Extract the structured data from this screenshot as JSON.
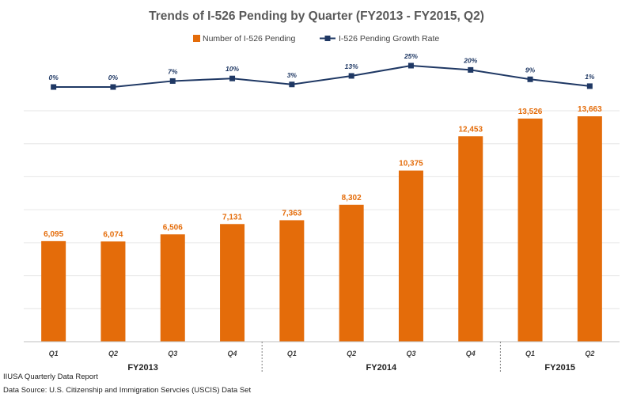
{
  "chart_data": {
    "type": "bar",
    "title": "Trends of I-526 Pending by Quarter (FY2013 - FY2015, Q2)",
    "categories": [
      "Q1",
      "Q2",
      "Q3",
      "Q4",
      "Q1",
      "Q2",
      "Q3",
      "Q4",
      "Q1",
      "Q2"
    ],
    "groups": [
      {
        "label": "FY2013",
        "count": 4
      },
      {
        "label": "FY2014",
        "count": 4
      },
      {
        "label": "FY2015",
        "count": 2
      }
    ],
    "series": [
      {
        "name": "Number of I-526 Pending",
        "type": "bar",
        "color": "#e46c0a",
        "values": [
          6095,
          6074,
          6506,
          7131,
          7363,
          8302,
          10375,
          12453,
          13526,
          13663
        ],
        "labels": [
          "6,095",
          "6,074",
          "6,506",
          "7,131",
          "7,363",
          "8,302",
          "10,375",
          "12,453",
          "13,526",
          "13,663"
        ]
      },
      {
        "name": "I-526 Pending Growth Rate",
        "type": "line",
        "color": "#1f3864",
        "marker": "square",
        "values": [
          0,
          0,
          7,
          10,
          3,
          13,
          25,
          20,
          9,
          1
        ],
        "labels": [
          "0%",
          "0%",
          "7%",
          "10%",
          "3%",
          "13%",
          "25%",
          "20%",
          "9%",
          "1%"
        ]
      }
    ],
    "ylim": [
      0,
      14000
    ],
    "legend_position": "top",
    "grid": true
  },
  "footer": {
    "line1": "IIUSA Quarterly Data Report",
    "line2": "Data Source: U.S. Citizenship and Immigration Servcies (USCIS) Data Set"
  }
}
